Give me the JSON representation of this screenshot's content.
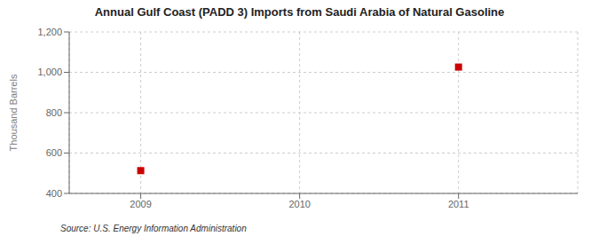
{
  "chart_data": {
    "type": "scatter",
    "title": "Annual Gulf Coast (PADD 3) Imports from Saudi Arabia of Natural Gasoline",
    "y_label": "Thousand Barrels",
    "annotations": [
      "Source: U.S. Energy Information Administration"
    ],
    "x": [
      2009,
      2011
    ],
    "values": [
      513,
      1026
    ],
    "color": "#cc0000",
    "marker": "square",
    "xlim": [
      2008.55,
      2011.75
    ],
    "xticks": [
      2009,
      2010,
      2011
    ],
    "ylim": [
      400,
      1200
    ],
    "yticks": [
      400,
      600,
      800,
      {
        "value": 1000,
        "label": "1,000"
      },
      {
        "value": 1200,
        "label": "1,200"
      }
    ],
    "grid": true
  }
}
